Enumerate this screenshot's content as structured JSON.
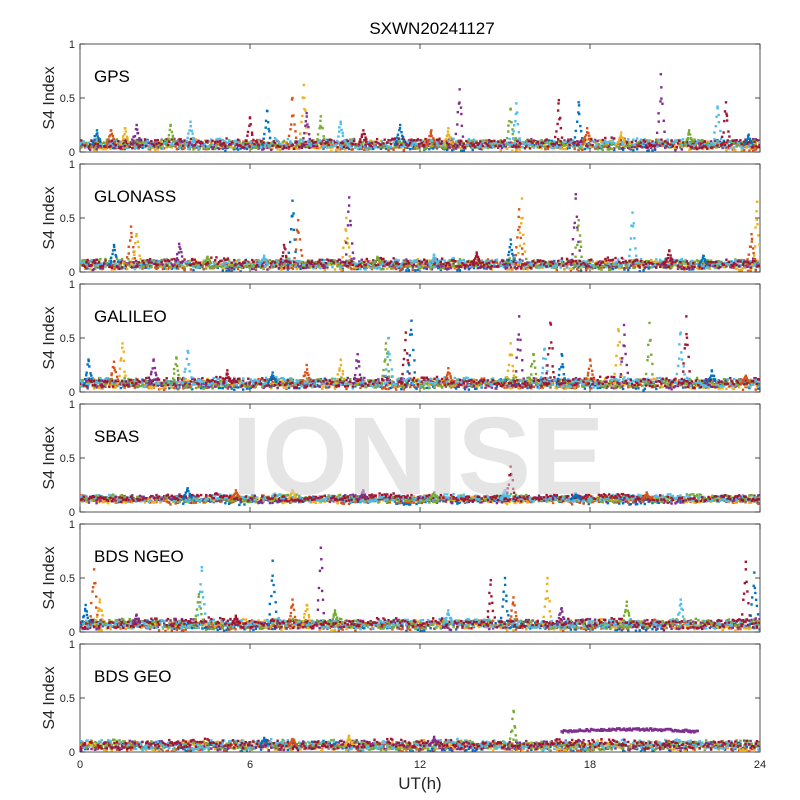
{
  "figure": {
    "title": "SXWN20241127",
    "xlabel": "UT(h)",
    "watermark": "IONISE"
  },
  "colors": {
    "series": [
      "#0072BD",
      "#D95319",
      "#EDB120",
      "#7E2F8E",
      "#77AC30",
      "#4DBEEE",
      "#A2142F"
    ],
    "axis": "#262626",
    "watermark": "#cfcfcf"
  },
  "chart_data": [
    {
      "type": "scatter",
      "panel": "GPS",
      "label": "GPS",
      "ylabel": "S4 Index",
      "xlim": [
        0,
        24
      ],
      "ylim": [
        0,
        1
      ],
      "xticks": [
        0,
        6,
        12,
        18,
        24
      ],
      "yticks": [
        0,
        0.5,
        1
      ],
      "baseline": 0.07,
      "spikes": [
        [
          0.6,
          0.2
        ],
        [
          1.1,
          0.2
        ],
        [
          1.6,
          0.22
        ],
        [
          2.0,
          0.25
        ],
        [
          3.2,
          0.25
        ],
        [
          3.9,
          0.28
        ],
        [
          6.0,
          0.32
        ],
        [
          6.6,
          0.38
        ],
        [
          7.5,
          0.5
        ],
        [
          7.9,
          0.62
        ],
        [
          8.0,
          0.36
        ],
        [
          8.5,
          0.33
        ],
        [
          9.2,
          0.28
        ],
        [
          10.0,
          0.2
        ],
        [
          11.3,
          0.25
        ],
        [
          12.4,
          0.2
        ],
        [
          13.0,
          0.22
        ],
        [
          13.4,
          0.58
        ],
        [
          15.2,
          0.4
        ],
        [
          15.4,
          0.45
        ],
        [
          16.9,
          0.48
        ],
        [
          17.6,
          0.46
        ],
        [
          17.9,
          0.22
        ],
        [
          19.1,
          0.18
        ],
        [
          20.5,
          0.72
        ],
        [
          21.5,
          0.2
        ],
        [
          22.5,
          0.42
        ],
        [
          22.8,
          0.46
        ],
        [
          23.6,
          0.16
        ]
      ]
    },
    {
      "type": "scatter",
      "panel": "GLONASS",
      "label": "GLONASS",
      "ylabel": "S4 Index",
      "xlim": [
        0,
        24
      ],
      "ylim": [
        0,
        1
      ],
      "xticks": [
        0,
        6,
        12,
        18,
        24
      ],
      "yticks": [
        0,
        0.5,
        1
      ],
      "baseline": 0.07,
      "spikes": [
        [
          1.2,
          0.25
        ],
        [
          1.8,
          0.42
        ],
        [
          2.0,
          0.35
        ],
        [
          3.5,
          0.26
        ],
        [
          4.5,
          0.14
        ],
        [
          6.5,
          0.15
        ],
        [
          7.2,
          0.25
        ],
        [
          7.5,
          0.66
        ],
        [
          7.7,
          0.48
        ],
        [
          9.4,
          0.5
        ],
        [
          9.5,
          0.69
        ],
        [
          10.5,
          0.14
        ],
        [
          12.5,
          0.16
        ],
        [
          14.0,
          0.18
        ],
        [
          15.2,
          0.3
        ],
        [
          15.5,
          0.58
        ],
        [
          15.6,
          0.68
        ],
        [
          17.5,
          0.72
        ],
        [
          17.6,
          0.48
        ],
        [
          19.5,
          0.55
        ],
        [
          20.8,
          0.2
        ],
        [
          22.0,
          0.15
        ],
        [
          23.7,
          0.35
        ],
        [
          23.9,
          0.65
        ]
      ]
    },
    {
      "type": "scatter",
      "panel": "GALILEO",
      "label": "GALILEO",
      "ylabel": "S4 Index",
      "xlim": [
        0,
        24
      ],
      "ylim": [
        0,
        1
      ],
      "xticks": [
        0,
        6,
        12,
        18,
        24
      ],
      "yticks": [
        0,
        0.5,
        1
      ],
      "baseline": 0.08,
      "spikes": [
        [
          0.3,
          0.3
        ],
        [
          1.2,
          0.28
        ],
        [
          1.5,
          0.45
        ],
        [
          2.6,
          0.3
        ],
        [
          3.4,
          0.32
        ],
        [
          3.8,
          0.38
        ],
        [
          5.2,
          0.2
        ],
        [
          6.8,
          0.18
        ],
        [
          8.0,
          0.25
        ],
        [
          9.2,
          0.3
        ],
        [
          9.8,
          0.35
        ],
        [
          10.8,
          0.45
        ],
        [
          10.9,
          0.5
        ],
        [
          11.5,
          0.55
        ],
        [
          11.7,
          0.66
        ],
        [
          13.0,
          0.22
        ],
        [
          15.2,
          0.45
        ],
        [
          15.5,
          0.7
        ],
        [
          16.0,
          0.35
        ],
        [
          16.4,
          0.4
        ],
        [
          16.6,
          0.64
        ],
        [
          17.0,
          0.35
        ],
        [
          18.0,
          0.3
        ],
        [
          19.0,
          0.58
        ],
        [
          19.2,
          0.62
        ],
        [
          20.1,
          0.64
        ],
        [
          21.2,
          0.55
        ],
        [
          21.4,
          0.7
        ],
        [
          22.3,
          0.2
        ],
        [
          23.5,
          0.15
        ]
      ]
    },
    {
      "type": "scatter",
      "panel": "SBAS",
      "label": "SBAS",
      "ylabel": "S4 Index",
      "xlim": [
        0,
        24
      ],
      "ylim": [
        0,
        1
      ],
      "xticks": [
        0,
        6,
        12,
        18,
        24
      ],
      "yticks": [
        0,
        0.5,
        1
      ],
      "baseline": 0.12,
      "spikes": [
        [
          3.8,
          0.22
        ],
        [
          5.5,
          0.2
        ],
        [
          7.5,
          0.2
        ],
        [
          10.0,
          0.2
        ],
        [
          12.5,
          0.18
        ],
        [
          15.0,
          0.2
        ],
        [
          15.2,
          0.42
        ],
        [
          17.5,
          0.17
        ],
        [
          20.0,
          0.18
        ]
      ]
    },
    {
      "type": "scatter",
      "panel": "BDS NGEO",
      "label": "BDS NGEO",
      "ylabel": "S4 Index",
      "xlim": [
        0,
        24
      ],
      "ylim": [
        0,
        1
      ],
      "xticks": [
        0,
        6,
        12,
        18,
        24
      ],
      "yticks": [
        0,
        0.5,
        1
      ],
      "baseline": 0.07,
      "spikes": [
        [
          0.2,
          0.25
        ],
        [
          0.5,
          0.58
        ],
        [
          0.7,
          0.3
        ],
        [
          2.0,
          0.16
        ],
        [
          4.2,
          0.35
        ],
        [
          4.3,
          0.6
        ],
        [
          5.5,
          0.15
        ],
        [
          6.8,
          0.66
        ],
        [
          7.5,
          0.3
        ],
        [
          8.0,
          0.25
        ],
        [
          8.5,
          0.78
        ],
        [
          9.0,
          0.2
        ],
        [
          13.0,
          0.2
        ],
        [
          14.5,
          0.48
        ],
        [
          15.0,
          0.5
        ],
        [
          15.3,
          0.32
        ],
        [
          16.5,
          0.5
        ],
        [
          17.0,
          0.22
        ],
        [
          19.3,
          0.28
        ],
        [
          21.2,
          0.3
        ],
        [
          23.5,
          0.65
        ],
        [
          23.8,
          0.55
        ]
      ]
    },
    {
      "type": "scatter",
      "panel": "BDS GEO",
      "label": "BDS GEO",
      "ylabel": "S4 Index",
      "xlim": [
        0,
        24
      ],
      "ylim": [
        0,
        1
      ],
      "xticks": [
        0,
        6,
        12,
        18,
        24
      ],
      "yticks": [
        0,
        0.5,
        1
      ],
      "baseline": 0.06,
      "spikes": [
        [
          6.5,
          0.13
        ],
        [
          7.5,
          0.12
        ],
        [
          9.5,
          0.15
        ],
        [
          12.5,
          0.14
        ],
        [
          15.3,
          0.38
        ]
      ],
      "plateau": {
        "x": [
          17.0,
          21.8
        ],
        "y": [
          0.19,
          0.21
        ]
      }
    }
  ]
}
